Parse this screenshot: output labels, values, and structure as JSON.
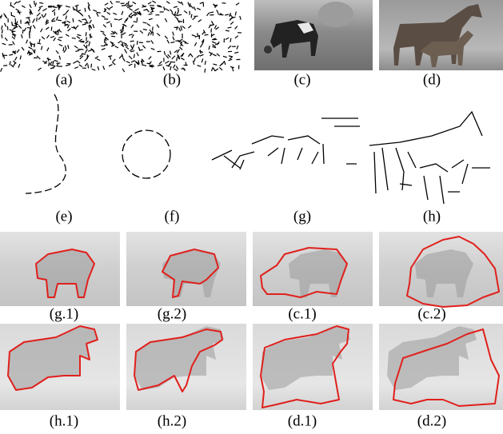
{
  "figure": {
    "rows": [
      [
        "(a)",
        "(b)",
        "(c)",
        "(d)"
      ],
      [
        "(e)",
        "(f)",
        "(g)",
        "(h)"
      ],
      [
        "(g.1)",
        "(g.2)",
        "(c.1)",
        "(c.2)"
      ],
      [
        "(h.1)",
        "(h.2)",
        "(d.1)",
        "(d.2)"
      ]
    ]
  }
}
